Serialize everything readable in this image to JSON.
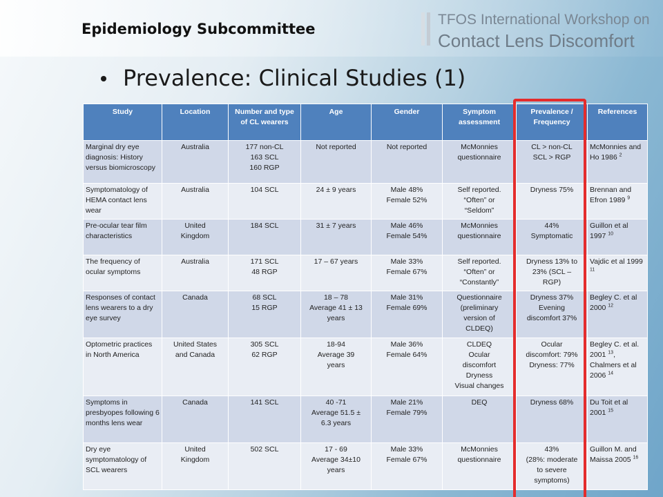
{
  "header": {
    "subcommittee": "Epidemiology Subcommittee",
    "brand_line1": "TFOS International Workshop on",
    "brand_line2": "Contact Lens Discomfort",
    "brand_color": "#7a8794"
  },
  "slide": {
    "title": "Prevalence: Clinical Studies (1)"
  },
  "table": {
    "header_color": "#4f81bd",
    "highlight_color": "#e42c2c",
    "columns": [
      "Study",
      "Location",
      "Number and type of CL wearers",
      "Age",
      "Gender",
      "Symptom assessment",
      "Prevalence / Frequency",
      "References"
    ],
    "rows": [
      {
        "study": "Marginal dry eye diagnosis: History versus biomicroscopy",
        "location": [
          "Australia"
        ],
        "number": [
          "177 non-CL",
          "163 SCL",
          "160 RGP"
        ],
        "age": [
          "Not reported"
        ],
        "gender": [
          "Not reported"
        ],
        "symptom": [
          "McMonnies",
          "questionnaire"
        ],
        "prevalence": [
          "CL > non-CL",
          "SCL > RGP"
        ],
        "ref_text": "McMonnies and Ho 1986",
        "ref_sup": "2"
      },
      {
        "study": "Symptomatology of HEMA contact lens wear",
        "location": [
          "Australia"
        ],
        "number": [
          "104 SCL"
        ],
        "age": [
          "24 ± 9 years"
        ],
        "gender": [
          "Male 48%",
          "Female 52%"
        ],
        "symptom": [
          "Self reported.",
          "“Often” or",
          "“Seldom”"
        ],
        "prevalence": [
          "Dryness 75%"
        ],
        "ref_text": "Brennan and Efron 1989",
        "ref_sup": "9"
      },
      {
        "study": "Pre-ocular tear film characteristics",
        "location": [
          "United",
          "Kingdom"
        ],
        "number": [
          "184 SCL"
        ],
        "age": [
          "31 ± 7 years"
        ],
        "gender": [
          "Male 46%",
          "Female 54%"
        ],
        "symptom": [
          "McMonnies",
          "questionnaire"
        ],
        "prevalence": [
          "44%",
          "Symptomatic"
        ],
        "ref_text": "Guillon et al 1997",
        "ref_sup": "10"
      },
      {
        "study": "The frequency of ocular symptoms",
        "location": [
          "Australia"
        ],
        "number": [
          "171 SCL",
          "48 RGP"
        ],
        "age": [
          "17 – 67 years"
        ],
        "gender": [
          "Male 33%",
          "Female 67%"
        ],
        "symptom": [
          "Self reported.",
          "“Often” or",
          "“Constantly”"
        ],
        "prevalence": [
          "Dryness 13% to",
          "23% (SCL –",
          "RGP)"
        ],
        "ref_text": "Vajdic et al 1999",
        "ref_sup": "11"
      },
      {
        "study": "Responses of contact lens wearers to a dry eye survey",
        "location": [
          "Canada"
        ],
        "number": [
          "68 SCL",
          "15 RGP"
        ],
        "age": [
          "18 – 78",
          "Average 41 ± 13",
          "years"
        ],
        "gender": [
          "Male 31%",
          "Female 69%"
        ],
        "symptom": [
          "Questionnaire",
          "(preliminary",
          "version of",
          "CLDEQ)"
        ],
        "prevalence": [
          "Dryness 37%",
          "Evening",
          "discomfort 37%"
        ],
        "ref_text": "Begley C. et al 2000",
        "ref_sup": "12"
      },
      {
        "study": "Optometric practices in North America",
        "location": [
          "United States",
          "and Canada"
        ],
        "number": [
          "305 SCL",
          "62 RGP"
        ],
        "age": [
          "18-94",
          "Average 39",
          "years"
        ],
        "gender": [
          "Male 36%",
          "Female 64%"
        ],
        "symptom": [
          "CLDEQ",
          "Ocular",
          "discomfort",
          "Dryness",
          "Visual changes"
        ],
        "prevalence": [
          "Ocular",
          "discomfort: 79%",
          "Dryness: 77%"
        ],
        "ref_text": "Begley C. et al. 2001",
        "ref_sup": "13",
        "ref_text2": ", Chalmers et al 2006",
        "ref_sup2": "14"
      },
      {
        "study": "Symptoms in presbyopes following 6 months lens wear",
        "location": [
          "Canada"
        ],
        "number": [
          "141 SCL"
        ],
        "age": [
          "40 -71",
          "Average 51.5 ±",
          "6.3 years"
        ],
        "gender": [
          "Male 21%",
          "Female 79%"
        ],
        "symptom": [
          "DEQ"
        ],
        "prevalence": [
          "Dryness 68%"
        ],
        "ref_text": "Du Toit et al 2001",
        "ref_sup": "15"
      },
      {
        "study": "Dry eye symptomatology of SCL wearers",
        "location": [
          "United",
          "Kingdom"
        ],
        "number": [
          "502 SCL"
        ],
        "age": [
          "17 - 69",
          "Average 34±10",
          "years"
        ],
        "gender": [
          "Male 33%",
          "Female 67%"
        ],
        "symptom": [
          "McMonnies",
          "questionnaire"
        ],
        "prevalence": [
          "43%",
          "(28%: moderate",
          "to severe",
          "symptoms)"
        ],
        "ref_text": "Guillon M. and Maissa 2005",
        "ref_sup": "16"
      }
    ]
  }
}
